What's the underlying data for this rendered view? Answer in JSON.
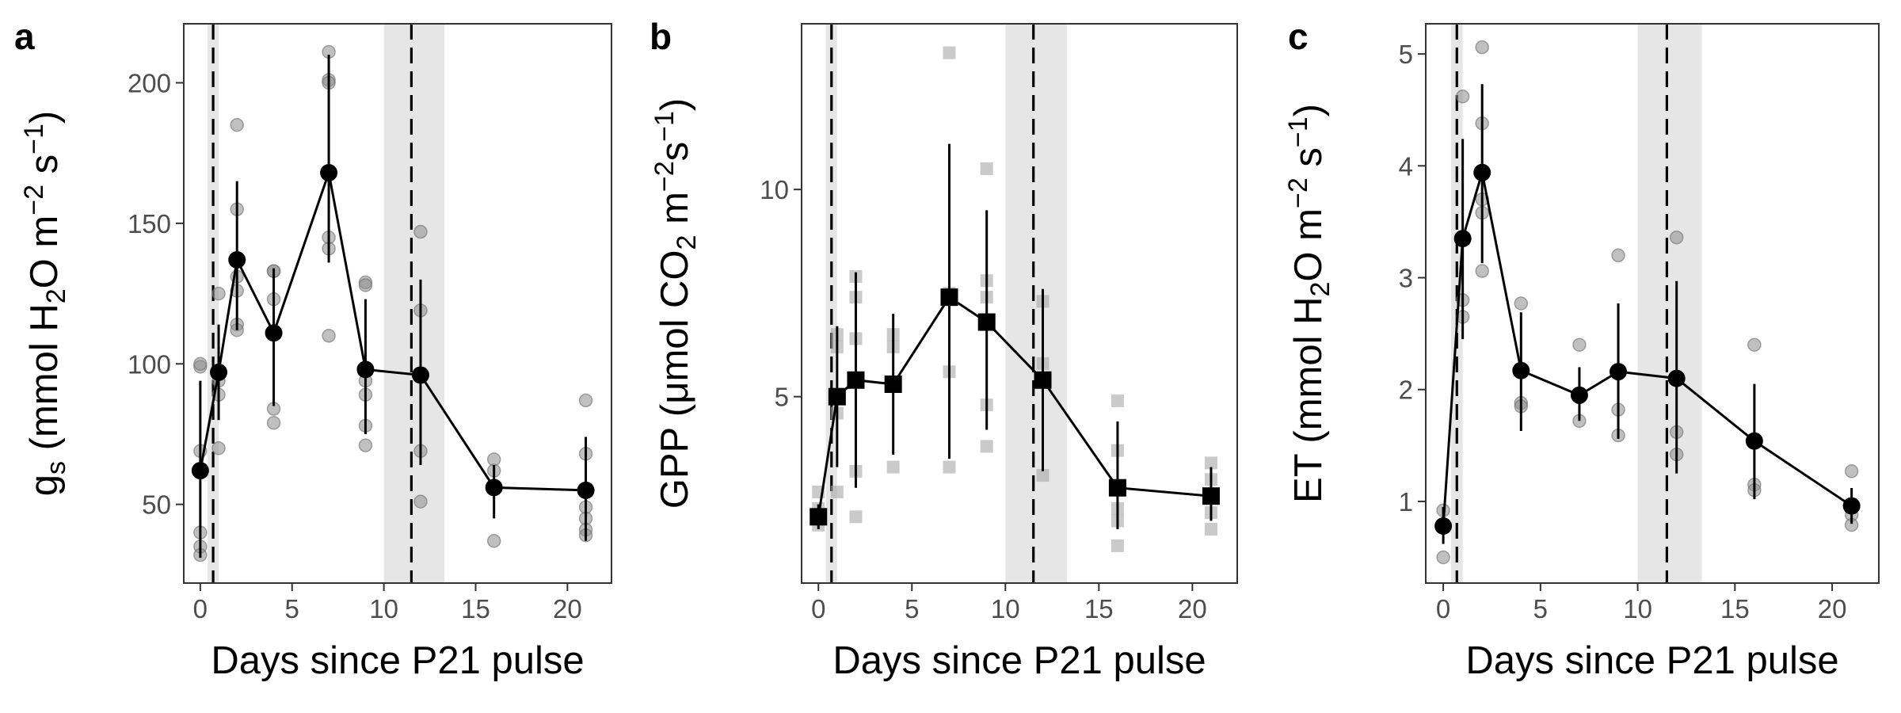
{
  "chart_data": [
    {
      "panel": "a",
      "type": "scatter",
      "marker": "circle",
      "xlabel": "Days since P21 pulse",
      "ylabel": {
        "base": "g",
        "base_sub": "s",
        "text": " (mmol H",
        "sub": "2",
        "unit": "O m",
        "sup1": "−2",
        "mid": " s",
        "sup2": "−1",
        "end": ")"
      },
      "xlim": [
        -0.9,
        22.4
      ],
      "ylim": [
        22,
        221
      ],
      "xticks": [
        0,
        5,
        10,
        15,
        20
      ],
      "yticks": [
        50,
        100,
        150,
        200
      ],
      "shaded_regions": [
        [
          0.4,
          1.0
        ],
        [
          10.0,
          13.3
        ]
      ],
      "dashed_lines_x": [
        0.7,
        11.5
      ],
      "grid": false,
      "series": [
        {
          "x": [
            0,
            1,
            2,
            4,
            7,
            9,
            12,
            16,
            21
          ],
          "y": [
            62,
            97,
            137,
            111,
            168,
            98,
            96,
            56,
            55
          ],
          "err_low": [
            31,
            80,
            112,
            85,
            136,
            75,
            64,
            45,
            37
          ],
          "err_high": [
            94,
            114,
            165,
            134,
            210,
            123,
            130,
            64,
            74
          ]
        }
      ],
      "raw_points": [
        {
          "x": 0,
          "y": [
            99,
            100,
            69,
            40,
            35,
            32
          ]
        },
        {
          "x": 1,
          "y": [
            125,
            94,
            89,
            70
          ]
        },
        {
          "x": 2,
          "y": [
            185,
            155,
            131,
            126,
            114,
            112
          ]
        },
        {
          "x": 4,
          "y": [
            133,
            133,
            123,
            84,
            79
          ]
        },
        {
          "x": 7,
          "y": [
            211,
            201,
            200,
            145,
            141,
            110
          ]
        },
        {
          "x": 9,
          "y": [
            129,
            128,
            94,
            89,
            78,
            71
          ]
        },
        {
          "x": 12,
          "y": [
            147,
            119,
            69,
            51
          ]
        },
        {
          "x": 16,
          "y": [
            66,
            62,
            37
          ]
        },
        {
          "x": 21,
          "y": [
            87,
            68,
            49,
            45,
            41,
            39
          ]
        }
      ]
    },
    {
      "panel": "b",
      "type": "scatter",
      "marker": "square",
      "xlabel": "Days since P21 pulse",
      "ylabel": {
        "base": "GPP",
        "text": " (μmol CO",
        "sub": "2",
        "unit": " m",
        "sup1": "−2",
        "mid": "s",
        "sup2": "−1",
        "end": ")"
      },
      "xlim": [
        -0.9,
        22.4
      ],
      "ylim": [
        0.5,
        14.0
      ],
      "xticks": [
        0,
        5,
        10,
        15,
        20
      ],
      "yticks": [
        5,
        10
      ],
      "shaded_regions": [
        [
          0.4,
          1.0
        ],
        [
          10.0,
          13.3
        ]
      ],
      "dashed_lines_x": [
        0.7,
        11.5
      ],
      "grid": false,
      "series": [
        {
          "x": [
            0,
            1,
            2,
            4,
            7,
            9,
            12,
            16,
            21
          ],
          "y": [
            2.1,
            5.0,
            5.4,
            5.3,
            7.4,
            6.8,
            5.4,
            2.8,
            2.6
          ],
          "err_low": [
            1.8,
            3.3,
            2.8,
            3.6,
            3.5,
            4.2,
            3.2,
            1.8,
            2.0
          ],
          "err_high": [
            2.4,
            6.7,
            8.0,
            7.0,
            11.1,
            9.5,
            7.6,
            4.4,
            3.3
          ]
        }
      ],
      "raw_points": [
        {
          "x": 0,
          "y": [
            2.7,
            2.3,
            1.9
          ]
        },
        {
          "x": 1,
          "y": [
            6.5,
            6.2,
            4.6,
            2.7
          ]
        },
        {
          "x": 2,
          "y": [
            7.9,
            7.4,
            6.4,
            3.2,
            2.1
          ]
        },
        {
          "x": 4,
          "y": [
            6.5,
            6.2,
            3.3
          ]
        },
        {
          "x": 7,
          "y": [
            13.3,
            7.5,
            5.6,
            3.3
          ]
        },
        {
          "x": 9,
          "y": [
            10.5,
            7.8,
            7.4,
            4.8,
            3.8
          ]
        },
        {
          "x": 12,
          "y": [
            7.3,
            5.8,
            3.1
          ]
        },
        {
          "x": 16,
          "y": [
            4.9,
            3.7,
            2.3,
            2.0,
            1.4
          ]
        },
        {
          "x": 21,
          "y": [
            3.4,
            3.0,
            2.2,
            1.8
          ]
        }
      ]
    },
    {
      "panel": "c",
      "type": "scatter",
      "marker": "circle",
      "xlabel": "Days since P21 pulse",
      "ylabel": {
        "base": "ET",
        "text": " (mmol H",
        "sub": "2",
        "unit": "O m",
        "sup1": "−2",
        "mid": " s",
        "sup2": "−1",
        "end": ")"
      },
      "xlim": [
        -0.9,
        22.4
      ],
      "ylim": [
        0.27,
        5.27
      ],
      "xticks": [
        0,
        5,
        10,
        15,
        20
      ],
      "yticks": [
        1,
        2,
        3,
        4,
        5
      ],
      "shaded_regions": [
        [
          0.4,
          1.0
        ],
        [
          10.0,
          13.3
        ]
      ],
      "dashed_lines_x": [
        0.7,
        11.5
      ],
      "grid": false,
      "series": [
        {
          "x": [
            0,
            1,
            2,
            4,
            7,
            9,
            12,
            16,
            21
          ],
          "y": [
            0.78,
            3.35,
            3.94,
            2.17,
            1.95,
            2.16,
            2.1,
            1.54,
            0.96
          ],
          "err_low": [
            0.62,
            2.45,
            3.13,
            1.63,
            1.72,
            1.56,
            1.25,
            1.02,
            0.8
          ],
          "err_high": [
            0.95,
            4.24,
            4.73,
            2.69,
            2.2,
            2.77,
            2.97,
            2.05,
            1.12
          ]
        }
      ],
      "raw_points": [
        {
          "x": 0,
          "y": [
            0.92,
            0.78,
            0.5
          ]
        },
        {
          "x": 1,
          "y": [
            4.62,
            2.8,
            2.65
          ]
        },
        {
          "x": 2,
          "y": [
            5.06,
            4.38,
            3.7,
            3.58,
            3.06
          ]
        },
        {
          "x": 4,
          "y": [
            2.77,
            1.88,
            1.85
          ]
        },
        {
          "x": 7,
          "y": [
            2.4,
            1.93,
            1.72
          ]
        },
        {
          "x": 9,
          "y": [
            3.2,
            2.14,
            1.82,
            1.59
          ]
        },
        {
          "x": 12,
          "y": [
            3.36,
            1.62,
            1.42
          ]
        },
        {
          "x": 16,
          "y": [
            2.4,
            1.15,
            1.1
          ]
        },
        {
          "x": 21,
          "y": [
            1.27,
            0.88,
            0.79
          ]
        }
      ]
    }
  ]
}
